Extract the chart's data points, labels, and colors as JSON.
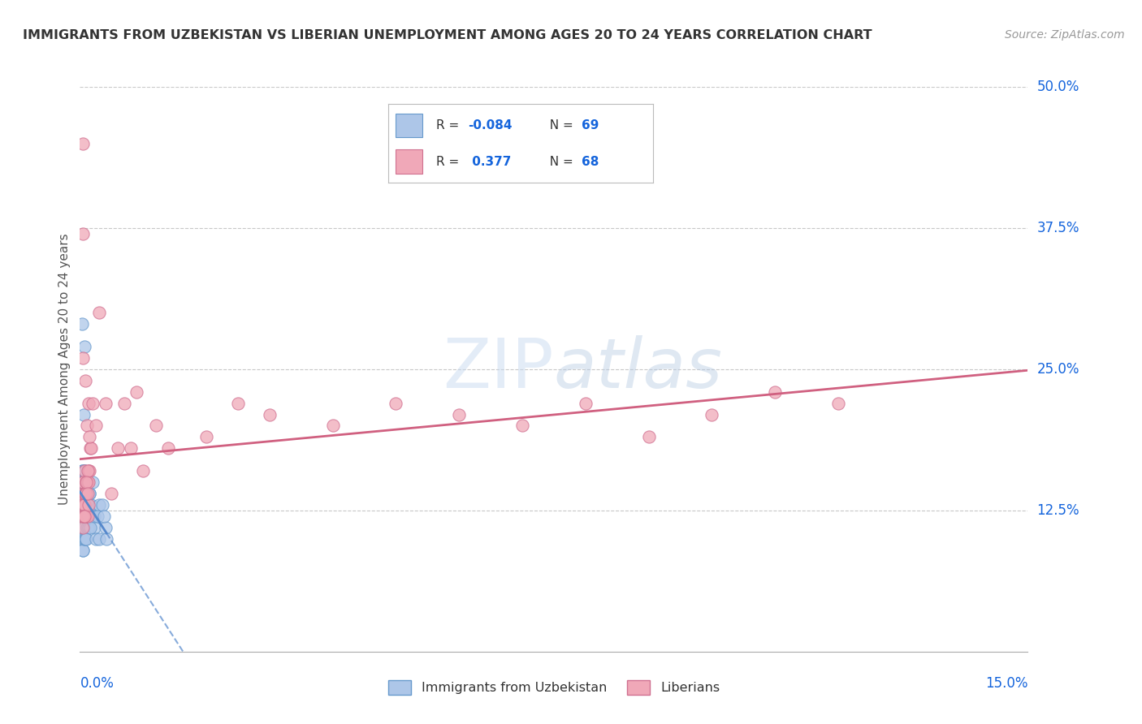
{
  "title": "IMMIGRANTS FROM UZBEKISTAN VS LIBERIAN UNEMPLOYMENT AMONG AGES 20 TO 24 YEARS CORRELATION CHART",
  "source_text": "Source: ZipAtlas.com",
  "xmin": 0.0,
  "xmax": 0.15,
  "ymin": 0.0,
  "ymax": 0.5,
  "series1_label": "Immigrants from Uzbekistan",
  "series1_color": "#adc6e8",
  "series1_edge_color": "#6699cc",
  "series1_R": "-0.084",
  "series1_N": "69",
  "series2_label": "Liberians",
  "series2_color": "#f0a8b8",
  "series2_edge_color": "#d07090",
  "series2_R": "0.377",
  "series2_N": "68",
  "legend_R_color": "#1464dc",
  "watermark": "ZIPatlas",
  "background_color": "#ffffff",
  "grid_color": "#c8c8c8",
  "trend1_color": "#5588cc",
  "trend2_color": "#d06080",
  "series1_x": [
    0.0002,
    0.0004,
    0.0003,
    0.0005,
    0.0006,
    0.0004,
    0.0003,
    0.0005,
    0.0007,
    0.0004,
    0.0005,
    0.0003,
    0.0006,
    0.0004,
    0.0005,
    0.0006,
    0.0007,
    0.0005,
    0.0004,
    0.0003,
    0.0006,
    0.0008,
    0.0007,
    0.0006,
    0.0005,
    0.0009,
    0.0007,
    0.0008,
    0.0006,
    0.0004,
    0.001,
    0.0009,
    0.0007,
    0.0005,
    0.0012,
    0.0009,
    0.0007,
    0.001,
    0.0008,
    0.0011,
    0.0009,
    0.0007,
    0.0013,
    0.001,
    0.0008,
    0.0012,
    0.001,
    0.0008,
    0.0015,
    0.0011,
    0.0009,
    0.0013,
    0.001,
    0.002,
    0.0017,
    0.0015,
    0.002,
    0.0022,
    0.0018,
    0.0025,
    0.003,
    0.0022,
    0.0016,
    0.003,
    0.0028,
    0.0035,
    0.004,
    0.0038,
    0.0042
  ],
  "series1_y": [
    0.13,
    0.15,
    0.12,
    0.14,
    0.11,
    0.13,
    0.16,
    0.1,
    0.14,
    0.12,
    0.11,
    0.29,
    0.13,
    0.09,
    0.15,
    0.14,
    0.12,
    0.16,
    0.1,
    0.13,
    0.21,
    0.14,
    0.11,
    0.15,
    0.12,
    0.13,
    0.16,
    0.1,
    0.14,
    0.09,
    0.13,
    0.12,
    0.27,
    0.15,
    0.11,
    0.14,
    0.1,
    0.13,
    0.15,
    0.11,
    0.14,
    0.16,
    0.12,
    0.15,
    0.1,
    0.13,
    0.12,
    0.13,
    0.14,
    0.15,
    0.12,
    0.11,
    0.1,
    0.12,
    0.13,
    0.14,
    0.15,
    0.11,
    0.12,
    0.1,
    0.13,
    0.12,
    0.11,
    0.1,
    0.12,
    0.13,
    0.11,
    0.12,
    0.1
  ],
  "series2_x": [
    0.0003,
    0.0005,
    0.0004,
    0.0006,
    0.0005,
    0.0007,
    0.0005,
    0.0003,
    0.0008,
    0.0006,
    0.0004,
    0.0009,
    0.0007,
    0.0005,
    0.001,
    0.0008,
    0.0006,
    0.0004,
    0.0011,
    0.0009,
    0.0007,
    0.0012,
    0.001,
    0.0008,
    0.0005,
    0.0013,
    0.0011,
    0.0009,
    0.0006,
    0.0014,
    0.0012,
    0.001,
    0.0007,
    0.0015,
    0.0013,
    0.0011,
    0.0009,
    0.0016,
    0.0014,
    0.0012,
    0.001,
    0.002,
    0.0018,
    0.0015,
    0.0012,
    0.0025,
    0.003,
    0.004,
    0.005,
    0.006,
    0.007,
    0.008,
    0.009,
    0.01,
    0.012,
    0.014,
    0.02,
    0.025,
    0.03,
    0.04,
    0.05,
    0.06,
    0.07,
    0.08,
    0.09,
    0.1,
    0.11,
    0.12
  ],
  "series2_y": [
    0.13,
    0.45,
    0.14,
    0.15,
    0.37,
    0.16,
    0.26,
    0.12,
    0.14,
    0.13,
    0.15,
    0.12,
    0.14,
    0.13,
    0.12,
    0.14,
    0.13,
    0.11,
    0.15,
    0.14,
    0.13,
    0.12,
    0.15,
    0.14,
    0.12,
    0.16,
    0.15,
    0.14,
    0.12,
    0.13,
    0.15,
    0.14,
    0.12,
    0.16,
    0.15,
    0.2,
    0.24,
    0.18,
    0.22,
    0.16,
    0.15,
    0.22,
    0.18,
    0.19,
    0.14,
    0.2,
    0.3,
    0.22,
    0.14,
    0.18,
    0.22,
    0.18,
    0.23,
    0.16,
    0.2,
    0.18,
    0.19,
    0.22,
    0.21,
    0.2,
    0.22,
    0.21,
    0.2,
    0.22,
    0.19,
    0.21,
    0.23,
    0.22
  ]
}
